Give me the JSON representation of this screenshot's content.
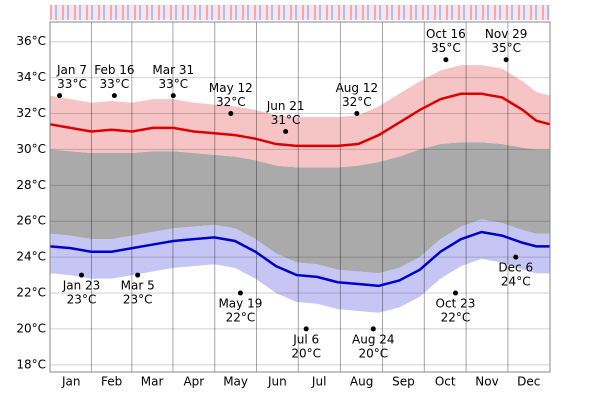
{
  "chart_data": {
    "type": "line",
    "x": [
      0,
      15,
      30,
      45,
      60,
      75,
      90,
      105,
      120,
      135,
      150,
      165,
      180,
      195,
      210,
      225,
      240,
      255,
      270,
      285,
      300,
      315,
      330,
      345,
      355,
      365
    ],
    "series": [
      {
        "color": "#dd0000",
        "values": [
          31.4,
          31.2,
          31.0,
          31.1,
          31.0,
          31.2,
          31.2,
          31.0,
          30.9,
          30.8,
          30.6,
          30.3,
          30.2,
          30.2,
          30.2,
          30.3,
          30.8,
          31.5,
          32.2,
          32.8,
          33.1,
          33.1,
          32.9,
          32.2,
          31.6,
          31.4
        ]
      },
      {
        "color": "#0000cc",
        "values": [
          24.6,
          24.5,
          24.3,
          24.3,
          24.5,
          24.7,
          24.9,
          25.0,
          25.1,
          24.9,
          24.3,
          23.5,
          23.0,
          22.9,
          22.6,
          22.5,
          22.4,
          22.7,
          23.3,
          24.3,
          25.0,
          25.4,
          25.2,
          24.8,
          24.6,
          24.6
        ]
      }
    ],
    "bands": [
      {
        "color": "#f5baba",
        "upper": [
          33.0,
          32.8,
          32.6,
          32.7,
          32.6,
          32.8,
          32.8,
          32.6,
          32.5,
          32.4,
          32.2,
          31.9,
          31.8,
          31.8,
          31.8,
          31.9,
          32.4,
          33.1,
          33.8,
          34.4,
          34.7,
          34.7,
          34.5,
          33.8,
          33.2,
          33.0
        ],
        "lower": [
          30.0,
          29.9,
          29.8,
          29.8,
          29.8,
          29.9,
          29.9,
          29.8,
          29.7,
          29.6,
          29.4,
          29.1,
          29.0,
          29.0,
          29.0,
          29.1,
          29.3,
          29.6,
          30.0,
          30.3,
          30.4,
          30.4,
          30.3,
          30.1,
          30.0,
          30.0
        ]
      },
      {
        "color": "#bcbcf2",
        "upper": [
          25.3,
          25.2,
          25.0,
          25.0,
          25.2,
          25.4,
          25.6,
          25.7,
          25.8,
          25.6,
          25.0,
          24.2,
          23.7,
          23.6,
          23.3,
          23.2,
          23.1,
          23.4,
          24.0,
          25.0,
          25.7,
          26.1,
          25.9,
          25.5,
          25.3,
          25.3
        ],
        "lower": [
          23.1,
          23.0,
          22.8,
          22.8,
          23.0,
          23.2,
          23.4,
          23.5,
          23.6,
          23.4,
          22.8,
          22.0,
          21.5,
          21.4,
          21.1,
          21.0,
          20.9,
          21.2,
          21.8,
          22.8,
          23.5,
          23.9,
          23.7,
          23.3,
          23.1,
          23.1
        ]
      }
    ],
    "middle_band_color": "#aaaaaa",
    "xlim": [
      0,
      365
    ],
    "xticks": [
      {
        "value": 15.5,
        "label": "Jan"
      },
      {
        "value": 45,
        "label": "Feb"
      },
      {
        "value": 74.5,
        "label": "Mar"
      },
      {
        "value": 105,
        "label": "Apr"
      },
      {
        "value": 135.5,
        "label": "May"
      },
      {
        "value": 166,
        "label": "Jun"
      },
      {
        "value": 196.5,
        "label": "Jul"
      },
      {
        "value": 227.5,
        "label": "Aug"
      },
      {
        "value": 258,
        "label": "Sep"
      },
      {
        "value": 288.5,
        "label": "Oct"
      },
      {
        "value": 319,
        "label": "Nov"
      },
      {
        "value": 349.5,
        "label": "Dec"
      }
    ],
    "ylim": [
      17.6,
      37.1
    ],
    "yticks": [
      {
        "value": 18,
        "label": "18°C"
      },
      {
        "value": 20,
        "label": "20°C"
      },
      {
        "value": 22,
        "label": "22°C"
      },
      {
        "value": 24,
        "label": "24°C"
      },
      {
        "value": 26,
        "label": "26°C"
      },
      {
        "value": 28,
        "label": "28°C"
      },
      {
        "value": 30,
        "label": "30°C"
      },
      {
        "value": 32,
        "label": "32°C"
      },
      {
        "value": 34,
        "label": "34°C"
      },
      {
        "value": 36,
        "label": "36°C"
      }
    ],
    "grid": true,
    "annotations": [
      {
        "x": 7,
        "value": 33,
        "date": "Jan 7",
        "label": "33°C",
        "position": "above"
      },
      {
        "x": 47,
        "value": 33,
        "date": "Feb 16",
        "label": "33°C",
        "position": "above"
      },
      {
        "x": 90,
        "value": 33,
        "date": "Mar 31",
        "label": "33°C",
        "position": "above"
      },
      {
        "x": 132,
        "value": 32,
        "date": "May 12",
        "label": "32°C",
        "position": "above"
      },
      {
        "x": 172,
        "value": 31,
        "date": "Jun 21",
        "label": "31°C",
        "position": "above"
      },
      {
        "x": 224,
        "value": 32,
        "date": "Aug 12",
        "label": "32°C",
        "position": "above"
      },
      {
        "x": 289,
        "value": 35,
        "date": "Oct 16",
        "label": "35°C",
        "position": "above"
      },
      {
        "x": 333,
        "value": 35,
        "date": "Nov 29",
        "label": "35°C",
        "position": "above"
      },
      {
        "x": 23,
        "value": 23,
        "date": "Jan 23",
        "label": "23°C",
        "position": "below"
      },
      {
        "x": 64,
        "value": 23,
        "date": "Mar 5",
        "label": "23°C",
        "position": "below"
      },
      {
        "x": 139,
        "value": 22,
        "date": "May 19",
        "label": "22°C",
        "position": "below"
      },
      {
        "x": 187,
        "value": 20,
        "date": "Jul 6",
        "label": "20°C",
        "position": "below"
      },
      {
        "x": 236,
        "value": 20,
        "date": "Aug 24",
        "label": "20°C",
        "position": "below"
      },
      {
        "x": 296,
        "value": 22,
        "date": "Oct 23",
        "label": "22°C",
        "position": "below"
      },
      {
        "x": 340,
        "value": 24,
        "date": "Dec 6",
        "label": "24°C",
        "position": "below"
      }
    ]
  }
}
